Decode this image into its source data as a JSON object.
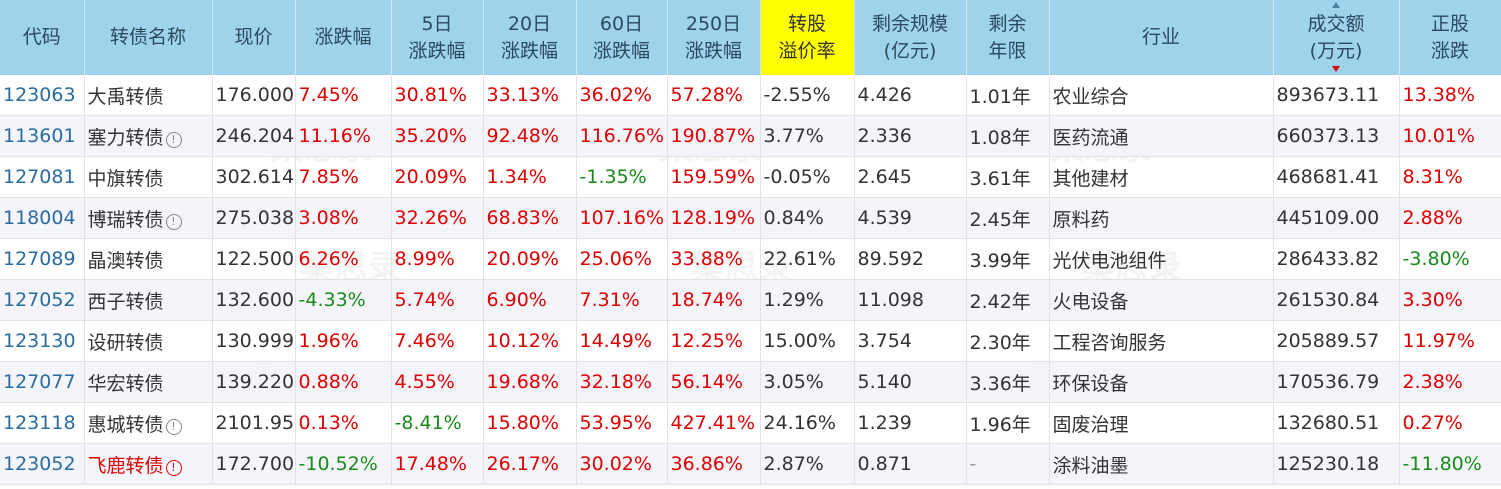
{
  "headers": [
    "代码",
    "转债名称",
    "现价",
    "涨跌幅",
    "5日\n涨跌幅",
    "20日\n涨跌幅",
    "60日\n涨跌幅",
    "250日\n涨跌幅",
    "转股\n溢价率",
    "剩余规模\n(亿元)",
    "剩余\n年限",
    "行业",
    "成交额\n(万元)",
    "正股\n涨跌"
  ],
  "watermark": "集思录",
  "rows": [
    {
      "code": "123063",
      "name": "大禹转债",
      "info": "",
      "price": "176.000",
      "chg": "7.45%",
      "chg5": "30.81%",
      "chg20": "33.13%",
      "chg60": "36.02%",
      "chg250": "57.28%",
      "premium": "-2.55%",
      "scale": "4.426",
      "years": "1.01年",
      "industry": "农业综合",
      "volume": "893673.11",
      "stock_chg": "13.38%"
    },
    {
      "code": "113601",
      "name": "塞力转债",
      "info": "!",
      "price": "246.204",
      "chg": "11.16%",
      "chg5": "35.20%",
      "chg20": "92.48%",
      "chg60": "116.76%",
      "chg250": "190.87%",
      "premium": "3.77%",
      "scale": "2.336",
      "years": "1.08年",
      "industry": "医药流通",
      "volume": "660373.13",
      "stock_chg": "10.01%"
    },
    {
      "code": "127081",
      "name": "中旗转债",
      "info": "",
      "price": "302.614",
      "chg": "7.85%",
      "chg5": "20.09%",
      "chg20": "1.34%",
      "chg60": "-1.35%",
      "chg250": "159.59%",
      "premium": "-0.05%",
      "scale": "2.645",
      "years": "3.61年",
      "industry": "其他建材",
      "volume": "468681.41",
      "stock_chg": "8.31%"
    },
    {
      "code": "118004",
      "name": "博瑞转债",
      "info": "!",
      "price": "275.038",
      "chg": "3.08%",
      "chg5": "32.26%",
      "chg20": "68.83%",
      "chg60": "107.16%",
      "chg250": "128.19%",
      "premium": "0.84%",
      "scale": "4.539",
      "years": "2.45年",
      "industry": "原料药",
      "volume": "445109.00",
      "stock_chg": "2.88%"
    },
    {
      "code": "127089",
      "name": "晶澳转债",
      "info": "",
      "price": "122.500",
      "chg": "6.26%",
      "chg5": "8.99%",
      "chg20": "20.09%",
      "chg60": "25.06%",
      "chg250": "33.88%",
      "premium": "22.61%",
      "scale": "89.592",
      "years": "3.99年",
      "industry": "光伏电池组件",
      "volume": "286433.82",
      "stock_chg": "-3.80%"
    },
    {
      "code": "127052",
      "name": "西子转债",
      "info": "",
      "price": "132.600",
      "chg": "-4.33%",
      "chg5": "5.74%",
      "chg20": "6.90%",
      "chg60": "7.31%",
      "chg250": "18.74%",
      "premium": "1.29%",
      "scale": "11.098",
      "years": "2.42年",
      "industry": "火电设备",
      "volume": "261530.84",
      "stock_chg": "3.30%"
    },
    {
      "code": "123130",
      "name": "设研转债",
      "info": "",
      "price": "130.999",
      "chg": "1.96%",
      "chg5": "7.46%",
      "chg20": "10.12%",
      "chg60": "14.49%",
      "chg250": "12.25%",
      "premium": "15.00%",
      "scale": "3.754",
      "years": "2.30年",
      "industry": "工程咨询服务",
      "volume": "205889.57",
      "stock_chg": "11.97%"
    },
    {
      "code": "127077",
      "name": "华宏转债",
      "info": "",
      "price": "139.220",
      "chg": "0.88%",
      "chg5": "4.55%",
      "chg20": "19.68%",
      "chg60": "32.18%",
      "chg250": "56.14%",
      "premium": "3.05%",
      "scale": "5.140",
      "years": "3.36年",
      "industry": "环保设备",
      "volume": "170536.79",
      "stock_chg": "2.38%"
    },
    {
      "code": "123118",
      "name": "惠城转债",
      "info": "!",
      "price": "2101.95",
      "chg": "0.13%",
      "chg5": "-8.41%",
      "chg20": "15.80%",
      "chg60": "53.95%",
      "chg250": "427.41%",
      "premium": "24.16%",
      "scale": "1.239",
      "years": "1.96年",
      "industry": "固废治理",
      "volume": "132680.51",
      "stock_chg": "0.27%"
    },
    {
      "code": "123052",
      "name": "飞鹿转债",
      "info": "!red",
      "price": "172.700",
      "chg": "-10.52%",
      "chg5": "17.48%",
      "chg20": "26.17%",
      "chg60": "30.02%",
      "chg250": "36.86%",
      "premium": "2.87%",
      "scale": "0.871",
      "years": "-",
      "industry": "涂料油墨",
      "volume": "125230.18",
      "stock_chg": "-11.80%"
    }
  ]
}
